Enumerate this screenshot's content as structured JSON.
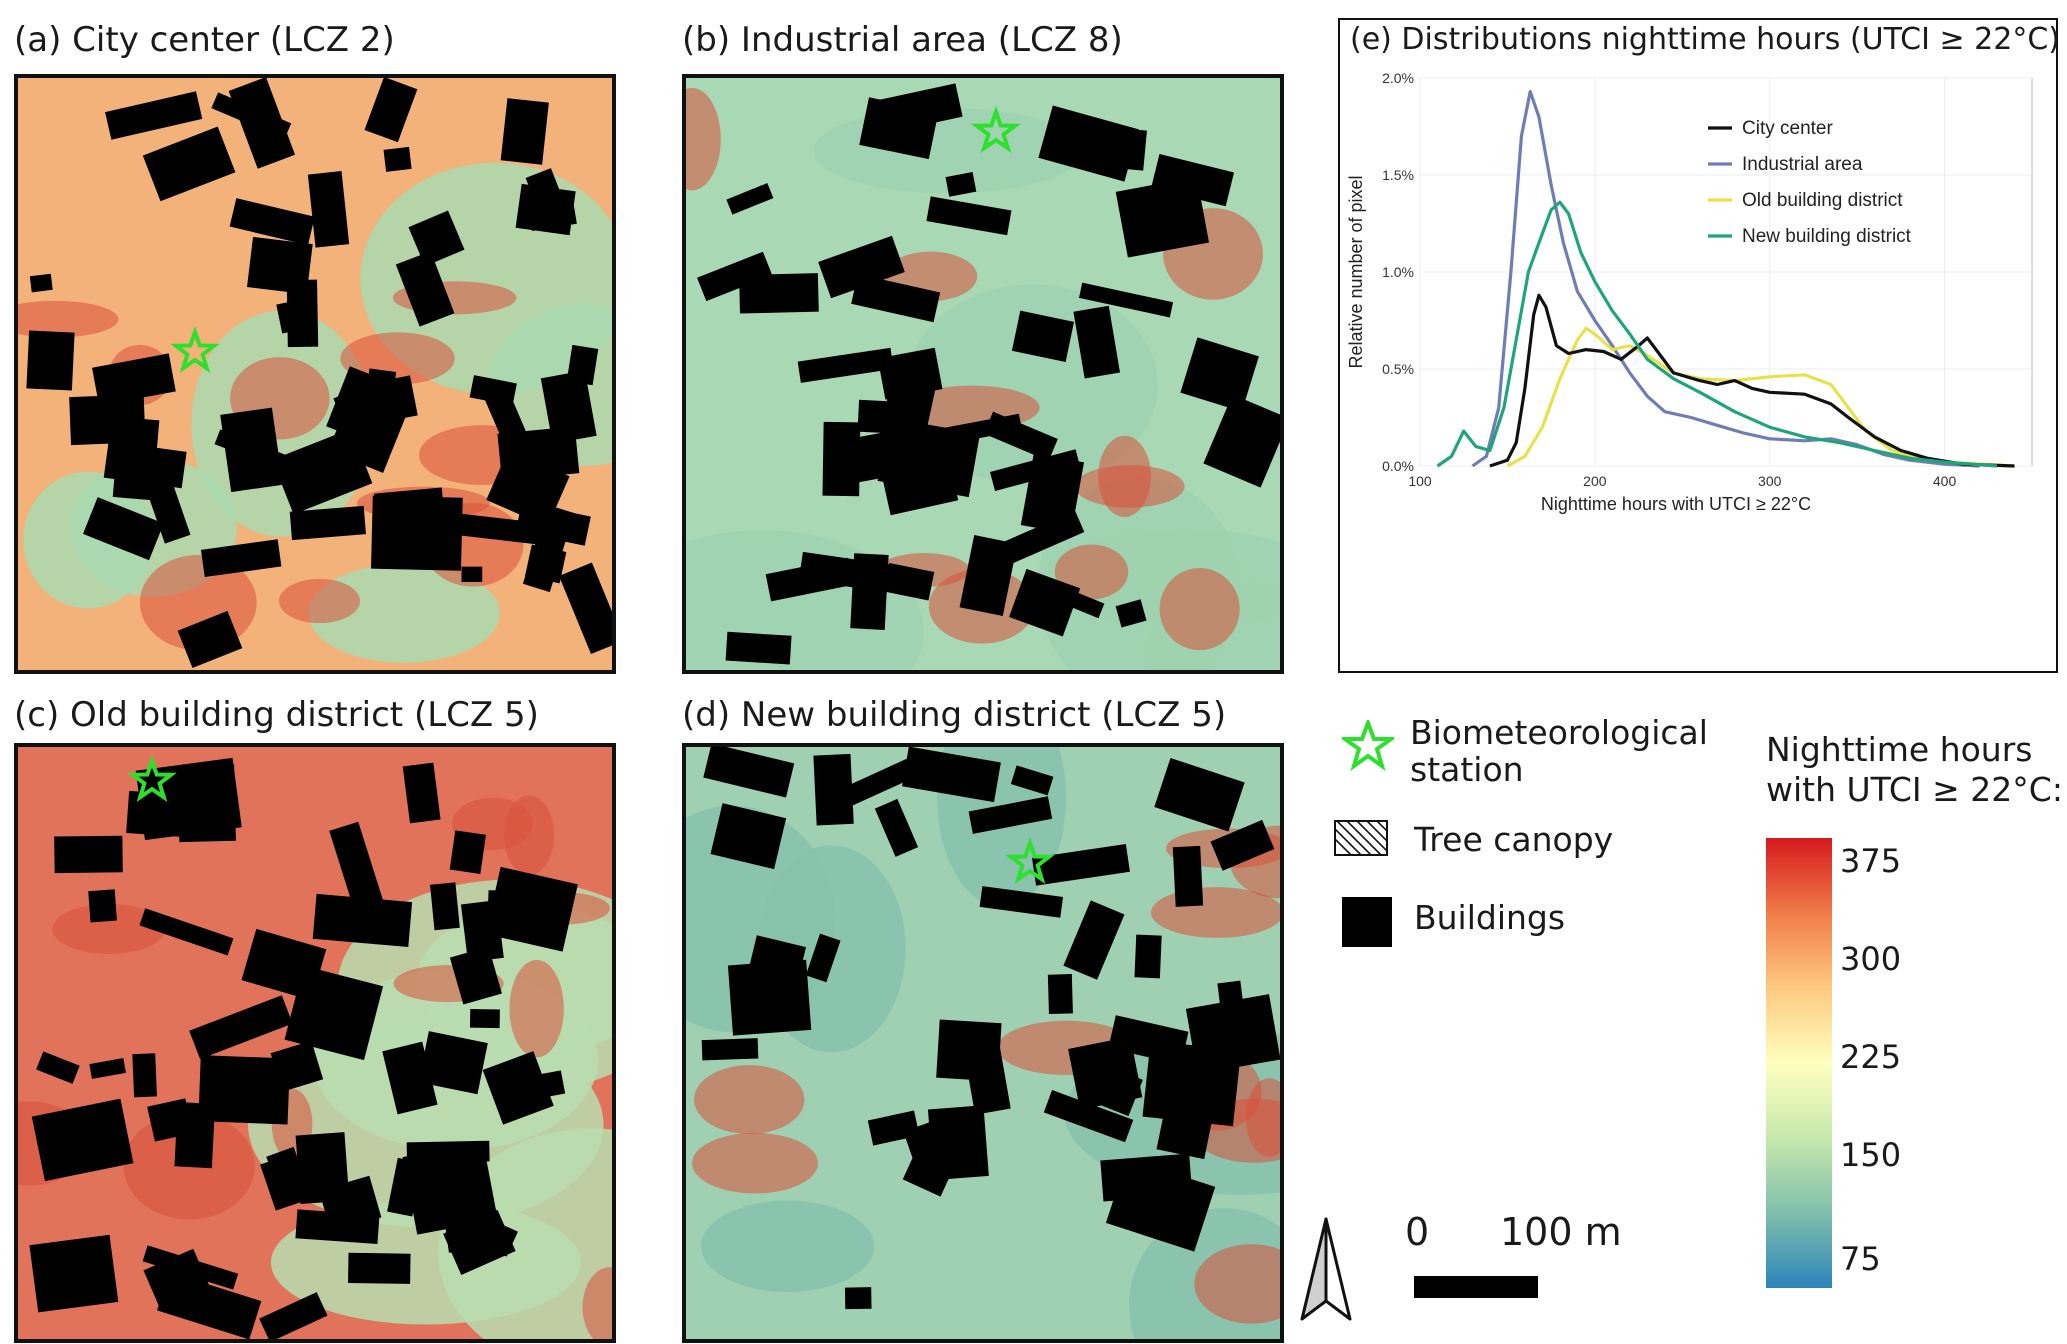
{
  "panels": {
    "a": {
      "title": "(a) City center (LCZ 2)"
    },
    "b": {
      "title": "(b) Industrial area (LCZ 8)"
    },
    "c": {
      "title": "(c) Old building district (LCZ 5)"
    },
    "d": {
      "title": "(d) New building district (LCZ 5)"
    },
    "e": {
      "title": "(e) Distributions nighttime hours  (UTCI ≥ 22°C)"
    }
  },
  "legend": {
    "station": "Biometeorological station",
    "station_line1": "Biometeorological",
    "station_line2": "station",
    "tree": "Tree canopy",
    "buildings": "Buildings"
  },
  "colorbar": {
    "title_line1": "Nighttime hours",
    "title_line2": "with UTCI ≥ 22°C:",
    "ticks": [
      "375",
      "300",
      "225",
      "150",
      "75"
    ],
    "colors": [
      "#d7191c",
      "#f07c4a",
      "#fec980",
      "#ffffbf",
      "#c7e9ad",
      "#80bfac",
      "#2b83ba"
    ]
  },
  "scalebar": {
    "zero": "0",
    "distance": "100 m"
  },
  "colors": {
    "star": "#2ee02e",
    "buildings": "#000000"
  },
  "chart_data": {
    "type": "line",
    "title": "",
    "xlabel": "Nighttime hours with UTCI ≥ 22°C",
    "ylabel": "Relative number of pixel",
    "xlim": [
      100,
      450
    ],
    "ylim": [
      0,
      2.0
    ],
    "x_ticks": [
      "100",
      "200",
      "300",
      "400"
    ],
    "y_ticks": [
      "0.0%",
      "0.5%",
      "1.0%",
      "1.5%",
      "2.0%"
    ],
    "grid": true,
    "legend_position": "top-right",
    "series": [
      {
        "name": "City center",
        "color": "#111111",
        "points": [
          [
            140,
            0
          ],
          [
            150,
            0.03
          ],
          [
            155,
            0.12
          ],
          [
            160,
            0.4
          ],
          [
            165,
            0.78
          ],
          [
            168,
            0.88
          ],
          [
            172,
            0.82
          ],
          [
            178,
            0.62
          ],
          [
            185,
            0.58
          ],
          [
            195,
            0.6
          ],
          [
            205,
            0.59
          ],
          [
            215,
            0.55
          ],
          [
            225,
            0.62
          ],
          [
            230,
            0.66
          ],
          [
            235,
            0.6
          ],
          [
            245,
            0.48
          ],
          [
            260,
            0.44
          ],
          [
            270,
            0.42
          ],
          [
            280,
            0.44
          ],
          [
            290,
            0.4
          ],
          [
            300,
            0.38
          ],
          [
            320,
            0.37
          ],
          [
            335,
            0.32
          ],
          [
            345,
            0.25
          ],
          [
            360,
            0.15
          ],
          [
            375,
            0.08
          ],
          [
            390,
            0.04
          ],
          [
            410,
            0.01
          ],
          [
            440,
            0
          ]
        ]
      },
      {
        "name": "Industrial area",
        "color": "#6e7db6",
        "points": [
          [
            130,
            0
          ],
          [
            138,
            0.05
          ],
          [
            145,
            0.3
          ],
          [
            152,
            1.0
          ],
          [
            158,
            1.7
          ],
          [
            163,
            1.93
          ],
          [
            168,
            1.8
          ],
          [
            175,
            1.45
          ],
          [
            182,
            1.15
          ],
          [
            190,
            0.9
          ],
          [
            200,
            0.75
          ],
          [
            210,
            0.62
          ],
          [
            220,
            0.48
          ],
          [
            230,
            0.36
          ],
          [
            240,
            0.28
          ],
          [
            255,
            0.25
          ],
          [
            270,
            0.21
          ],
          [
            285,
            0.17
          ],
          [
            300,
            0.14
          ],
          [
            320,
            0.13
          ],
          [
            335,
            0.14
          ],
          [
            350,
            0.11
          ],
          [
            365,
            0.06
          ],
          [
            380,
            0.03
          ],
          [
            400,
            0.01
          ],
          [
            420,
            0
          ]
        ]
      },
      {
        "name": "Old building district",
        "color": "#e8e24a",
        "points": [
          [
            150,
            0
          ],
          [
            160,
            0.05
          ],
          [
            170,
            0.2
          ],
          [
            180,
            0.45
          ],
          [
            190,
            0.65
          ],
          [
            195,
            0.71
          ],
          [
            200,
            0.68
          ],
          [
            210,
            0.6
          ],
          [
            220,
            0.62
          ],
          [
            230,
            0.57
          ],
          [
            245,
            0.48
          ],
          [
            260,
            0.45
          ],
          [
            280,
            0.44
          ],
          [
            300,
            0.46
          ],
          [
            320,
            0.47
          ],
          [
            335,
            0.42
          ],
          [
            345,
            0.3
          ],
          [
            355,
            0.18
          ],
          [
            370,
            0.08
          ],
          [
            385,
            0.04
          ],
          [
            400,
            0.02
          ],
          [
            420,
            0.01
          ],
          [
            440,
            0
          ]
        ]
      },
      {
        "name": "New building district",
        "color": "#1fa57a",
        "points": [
          [
            110,
            0
          ],
          [
            118,
            0.05
          ],
          [
            125,
            0.18
          ],
          [
            132,
            0.1
          ],
          [
            140,
            0.08
          ],
          [
            148,
            0.3
          ],
          [
            155,
            0.65
          ],
          [
            162,
            1.0
          ],
          [
            168,
            1.15
          ],
          [
            175,
            1.32
          ],
          [
            180,
            1.36
          ],
          [
            185,
            1.3
          ],
          [
            192,
            1.1
          ],
          [
            200,
            0.95
          ],
          [
            210,
            0.8
          ],
          [
            220,
            0.68
          ],
          [
            230,
            0.55
          ],
          [
            245,
            0.45
          ],
          [
            260,
            0.38
          ],
          [
            280,
            0.28
          ],
          [
            300,
            0.2
          ],
          [
            320,
            0.15
          ],
          [
            340,
            0.12
          ],
          [
            360,
            0.08
          ],
          [
            380,
            0.04
          ],
          [
            400,
            0.02
          ],
          [
            430,
            0
          ]
        ]
      }
    ]
  }
}
